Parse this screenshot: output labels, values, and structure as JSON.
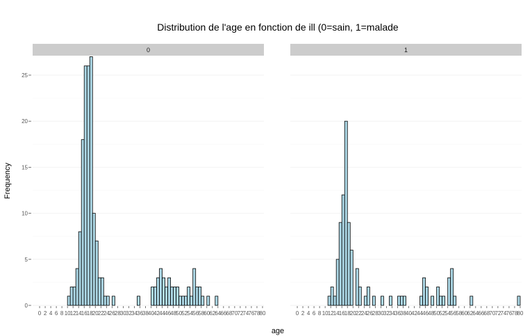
{
  "chart_data": {
    "type": "bar",
    "title": "Distribution de l'age en fonction de ill (0=sain, 1=malade",
    "xlabel": "age",
    "ylabel": "Frequency",
    "xlim": [
      0,
      80
    ],
    "ylim": [
      0,
      27
    ],
    "x_ticks": [
      0,
      2,
      4,
      6,
      8,
      10,
      12,
      14,
      16,
      18,
      20,
      22,
      24,
      26,
      28,
      30,
      32,
      34,
      36,
      38,
      40,
      42,
      44,
      46,
      48,
      50,
      52,
      54,
      56,
      58,
      60,
      62,
      64,
      66,
      68,
      70,
      72,
      74,
      76,
      78,
      80
    ],
    "y_ticks": [
      0,
      5,
      10,
      15,
      20,
      25
    ],
    "bar_fill": "#add8e6",
    "bar_stroke": "#000000",
    "strip_fill": "#cccccc",
    "grid": true,
    "facets": [
      {
        "label": "0",
        "bars": [
          {
            "x": 11,
            "y": 1
          },
          {
            "x": 12,
            "y": 2
          },
          {
            "x": 13,
            "y": 2
          },
          {
            "x": 14,
            "y": 4
          },
          {
            "x": 15,
            "y": 8
          },
          {
            "x": 16,
            "y": 18
          },
          {
            "x": 17,
            "y": 26
          },
          {
            "x": 18,
            "y": 26
          },
          {
            "x": 19,
            "y": 27
          },
          {
            "x": 20,
            "y": 10
          },
          {
            "x": 21,
            "y": 7
          },
          {
            "x": 22,
            "y": 3
          },
          {
            "x": 23,
            "y": 3
          },
          {
            "x": 24,
            "y": 1
          },
          {
            "x": 25,
            "y": 1
          },
          {
            "x": 27,
            "y": 1
          },
          {
            "x": 36,
            "y": 1
          },
          {
            "x": 41,
            "y": 2
          },
          {
            "x": 42,
            "y": 2
          },
          {
            "x": 43,
            "y": 3
          },
          {
            "x": 44,
            "y": 4
          },
          {
            "x": 45,
            "y": 3
          },
          {
            "x": 46,
            "y": 2
          },
          {
            "x": 47,
            "y": 3
          },
          {
            "x": 48,
            "y": 2
          },
          {
            "x": 49,
            "y": 2
          },
          {
            "x": 50,
            "y": 2
          },
          {
            "x": 51,
            "y": 1
          },
          {
            "x": 52,
            "y": 1
          },
          {
            "x": 53,
            "y": 1
          },
          {
            "x": 54,
            "y": 2
          },
          {
            "x": 55,
            "y": 1
          },
          {
            "x": 56,
            "y": 4
          },
          {
            "x": 57,
            "y": 2
          },
          {
            "x": 58,
            "y": 2
          },
          {
            "x": 59,
            "y": 1
          },
          {
            "x": 61,
            "y": 1
          },
          {
            "x": 64,
            "y": 1
          }
        ]
      },
      {
        "label": "1",
        "bars": [
          {
            "x": 12,
            "y": 1
          },
          {
            "x": 13,
            "y": 2
          },
          {
            "x": 14,
            "y": 1
          },
          {
            "x": 15,
            "y": 5
          },
          {
            "x": 16,
            "y": 9
          },
          {
            "x": 17,
            "y": 12
          },
          {
            "x": 18,
            "y": 20
          },
          {
            "x": 19,
            "y": 9
          },
          {
            "x": 20,
            "y": 6
          },
          {
            "x": 22,
            "y": 4
          },
          {
            "x": 23,
            "y": 2
          },
          {
            "x": 25,
            "y": 1
          },
          {
            "x": 26,
            "y": 2
          },
          {
            "x": 28,
            "y": 1
          },
          {
            "x": 31,
            "y": 1
          },
          {
            "x": 34,
            "y": 1
          },
          {
            "x": 37,
            "y": 1
          },
          {
            "x": 38,
            "y": 1
          },
          {
            "x": 39,
            "y": 1
          },
          {
            "x": 45,
            "y": 1
          },
          {
            "x": 46,
            "y": 3
          },
          {
            "x": 47,
            "y": 2
          },
          {
            "x": 49,
            "y": 1
          },
          {
            "x": 51,
            "y": 2
          },
          {
            "x": 52,
            "y": 1
          },
          {
            "x": 53,
            "y": 1
          },
          {
            "x": 55,
            "y": 3
          },
          {
            "x": 56,
            "y": 4
          },
          {
            "x": 57,
            "y": 1
          },
          {
            "x": 63,
            "y": 1
          },
          {
            "x": 80,
            "y": 1
          }
        ]
      }
    ]
  }
}
